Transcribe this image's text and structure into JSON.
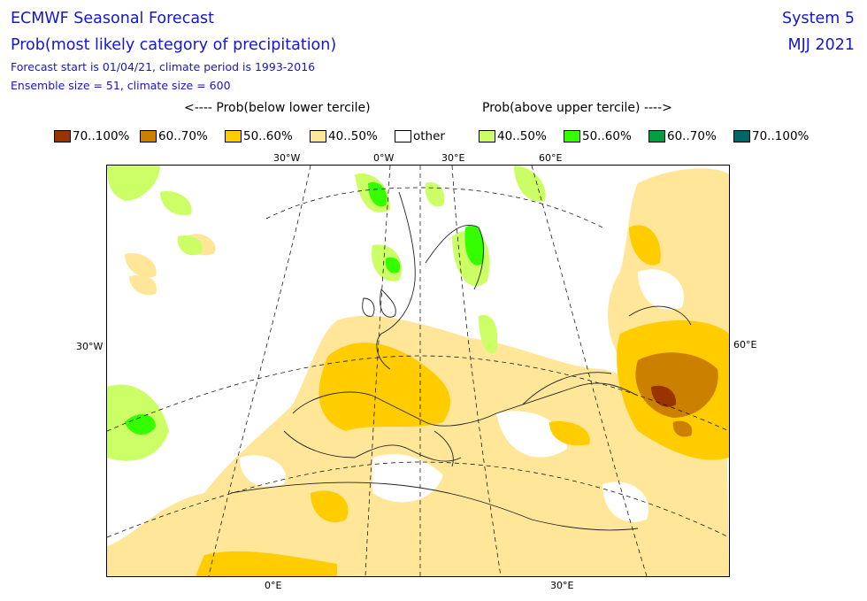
{
  "title": {
    "line1": "ECMWF Seasonal Forecast",
    "line2": "Prob(most likely category of precipitation)",
    "line3": "Forecast start is 01/04/21, climate period is 1993-2016",
    "line4": "Ensemble size = 51, climate size = 600",
    "system": "System 5",
    "season": "MJJ 2021"
  },
  "legend": {
    "below_header": "<---- Prob(below lower tercile)",
    "above_header": "Prob(above upper tercile) ---->",
    "items": [
      {
        "label": "70..100%",
        "color": "#993300"
      },
      {
        "label": "60..70%",
        "color": "#cc8000"
      },
      {
        "label": "50..60%",
        "color": "#ffcc00"
      },
      {
        "label": "40..50%",
        "color": "#ffe699"
      },
      {
        "label": "other",
        "color": "#ffffff"
      },
      {
        "label": "40..50%",
        "color": "#ccff66"
      },
      {
        "label": "50..60%",
        "color": "#33ff00"
      },
      {
        "label": "60..70%",
        "color": "#00a040"
      },
      {
        "label": "70..100%",
        "color": "#006666"
      }
    ]
  },
  "axis_labels": {
    "top": [
      "30°W",
      "0°W",
      "30°E",
      "60°E"
    ],
    "bottom": [
      "0°E",
      "30°E"
    ],
    "left": "30°W",
    "right": "60°E"
  }
}
